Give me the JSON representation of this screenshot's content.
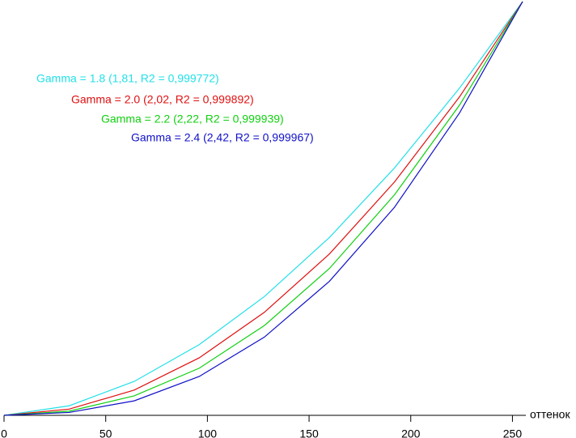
{
  "chart_data": {
    "type": "line",
    "x_label": "оттенок",
    "x": [
      0,
      32,
      64,
      96,
      128,
      160,
      192,
      224,
      255
    ],
    "series": [
      {
        "name": "Gamma = 1.8 (1,81, R2 = 0,999772)",
        "color": "#22e0e8",
        "values": [
          0,
          0.023,
          0.082,
          0.171,
          0.287,
          0.43,
          0.598,
          0.791,
          1
        ]
      },
      {
        "name": "Gamma = 2.0 (2,02, R2 = 0,999892)",
        "color": "#e01010",
        "values": [
          0,
          0.015,
          0.061,
          0.139,
          0.249,
          0.39,
          0.564,
          0.77,
          1
        ]
      },
      {
        "name": "Gamma = 2.2 (2,22, R2 = 0,999939)",
        "color": "#10d010",
        "values": [
          0,
          0.01,
          0.047,
          0.114,
          0.217,
          0.355,
          0.533,
          0.75,
          1
        ]
      },
      {
        "name": "Gamma = 2.4 (2,42, R2 = 0,999967)",
        "color": "#1010c8",
        "values": [
          0,
          0.007,
          0.035,
          0.094,
          0.189,
          0.324,
          0.503,
          0.731,
          1
        ]
      }
    ],
    "xlim": [
      0,
      255
    ],
    "xticks": [
      0,
      50,
      100,
      150,
      200,
      250
    ],
    "ylim": [
      0,
      1
    ]
  }
}
